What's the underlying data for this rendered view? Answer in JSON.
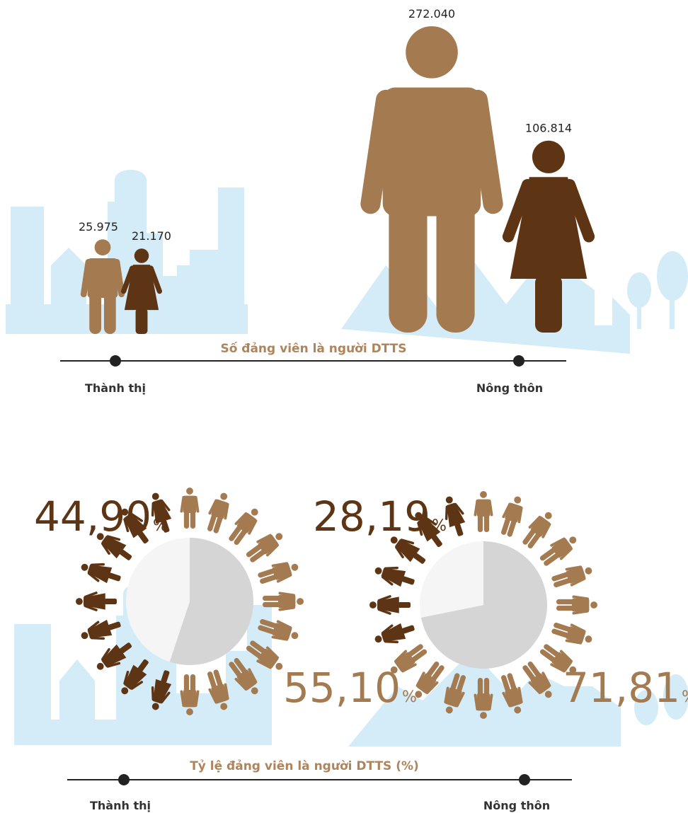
{
  "chart_data": [
    {
      "type": "pictograph",
      "title": "Số đảng viên là người DTTS",
      "categories": [
        "Thành thị",
        "Nông thôn"
      ],
      "series": [
        {
          "color": "#a47a50",
          "values": [
            25975,
            272040
          ],
          "value_labels": [
            "25.975",
            "272.040"
          ]
        },
        {
          "color": "#5e3514",
          "values": [
            21170,
            106814
          ],
          "value_labels": [
            "21.170",
            "106.814"
          ]
        }
      ]
    },
    {
      "type": "pie",
      "title": "Tỷ lệ đảng viên là người DTTS (%)",
      "unit": "%",
      "categories": [
        "Thành thị",
        "Nông thôn"
      ],
      "slice_colors": [
        "#f5f5f5",
        "#d5d5d5"
      ],
      "series": [
        {
          "color": "#5e3514",
          "values": [
            44.9,
            28.19
          ],
          "value_labels": [
            "44,90",
            "28,19"
          ]
        },
        {
          "color": "#a47a50",
          "values": [
            55.1,
            71.81
          ],
          "value_labels": [
            "55,10",
            "71,81"
          ]
        }
      ]
    }
  ]
}
